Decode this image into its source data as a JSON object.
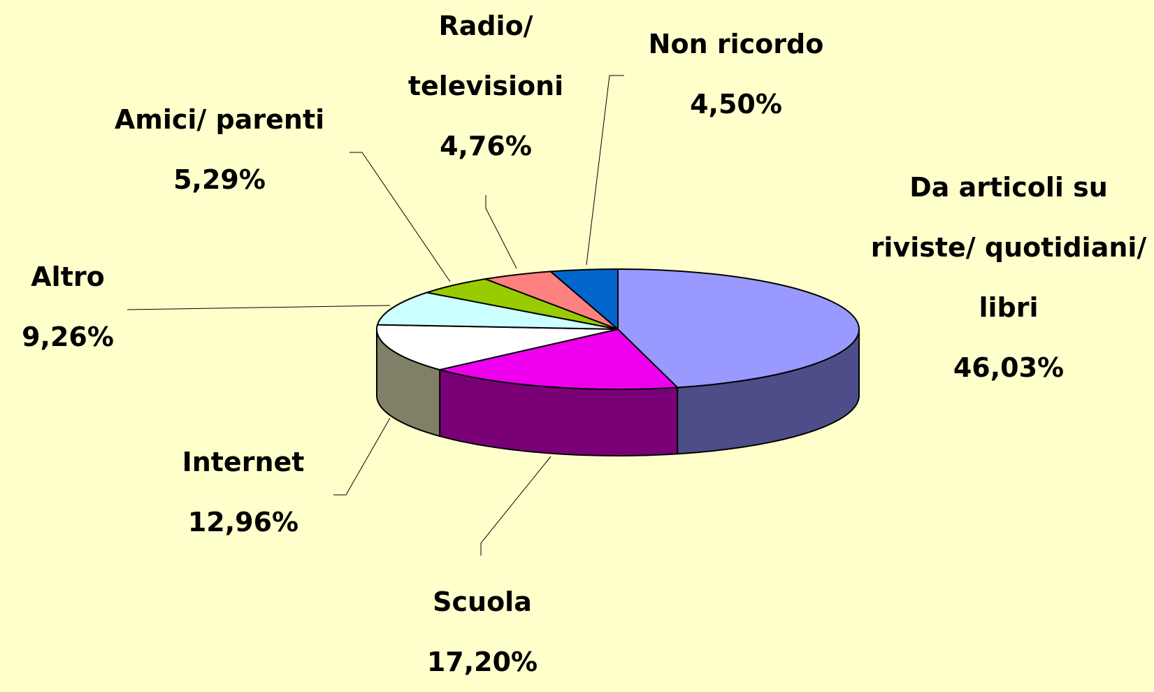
{
  "chart_data": {
    "type": "pie3d",
    "categories": [
      "Da articoli su riviste/ quotidiani/ libri",
      "Scuola",
      "Internet",
      "Altro",
      "Amici/ parenti",
      "Radio/ televisioni",
      "Non ricordo"
    ],
    "values": [
      46.03,
      17.2,
      12.96,
      9.26,
      5.29,
      4.76,
      4.5
    ],
    "value_labels": [
      "46,03%",
      "17,20%",
      "12,96%",
      "9,26%",
      "5,29%",
      "4,76%",
      "4,50%"
    ],
    "colors": [
      "#9999ff",
      "#ee00ee",
      "#ffffff",
      "#ccffff",
      "#99cc00",
      "#ff8080",
      "#0066cc"
    ],
    "side_colors": [
      "#4d4d8a",
      "#7a0078",
      "#808066",
      "#7fa6a6",
      "#5c7a00",
      "#a04848",
      "#003d7a"
    ]
  }
}
